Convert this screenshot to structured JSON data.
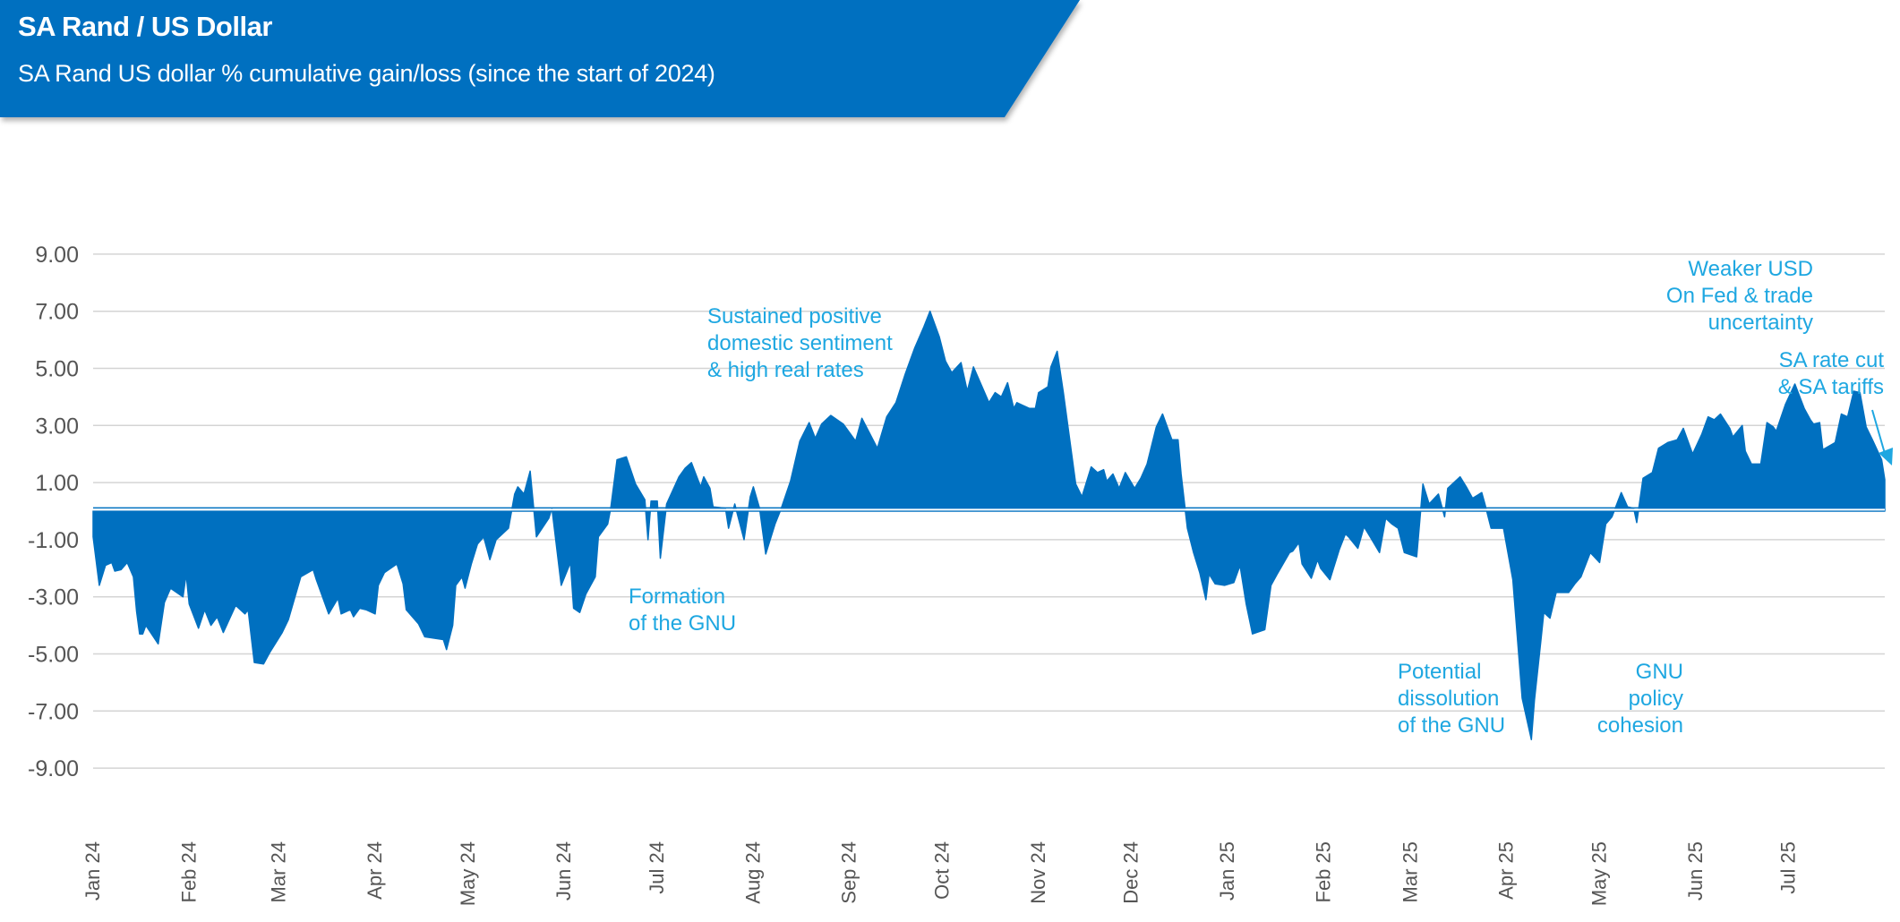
{
  "header": {
    "title": "SA Rand / US Dollar",
    "subtitle": "SA Rand US dollar % cumulative gain/loss (since the start of 2024)",
    "color": "#0070c0"
  },
  "annotations": {
    "sentiment": "Sustained positive\ndomestic sentiment\n& high real rates",
    "formation": "Formation\nof the GNU",
    "dissolution": "Potential\ndissolution\nof the GNU",
    "cohesion": "GNU\npolicy\ncohesion",
    "weaker_usd": "Weaker USD\nOn Fed & trade\nuncertainty",
    "rate_cut": "SA rate cut\n& SA tariffs",
    "color": "#1ea7e1"
  },
  "chart_data": {
    "type": "area",
    "title": "",
    "xlabel": "",
    "ylabel": "",
    "xlim": [
      "2024-01-01",
      "2025-08-01"
    ],
    "ylim": [
      -9,
      9
    ],
    "yticks": [
      9,
      7,
      5,
      3,
      1,
      -1,
      -3,
      -5,
      -7,
      -9
    ],
    "ytick_labels": [
      "9.00",
      "7.00",
      "5.00",
      "3.00",
      "1.00",
      "-1.00",
      "-3.00",
      "-5.00",
      "-7.00",
      "-9.00"
    ],
    "xticks": [
      "2024-01-01",
      "2024-02-01",
      "2024-03-01",
      "2024-04-01",
      "2024-05-01",
      "2024-06-01",
      "2024-07-01",
      "2024-08-01",
      "2024-09-01",
      "2024-10-01",
      "2024-11-01",
      "2024-12-01",
      "2025-01-01",
      "2025-02-01",
      "2025-03-01",
      "2025-04-01",
      "2025-05-01",
      "2025-06-01",
      "2025-07-01"
    ],
    "xtick_labels": [
      "Jan 24",
      "Feb 24",
      "Mar 24",
      "Apr 24",
      "May 24",
      "Jun 24",
      "Jul 24",
      "Aug 24",
      "Sep 24",
      "Oct 24",
      "Nov 24",
      "Dec 24",
      "Jan 25",
      "Feb 25",
      "Mar 25",
      "Apr 25",
      "May 25",
      "Jun 25",
      "Jul 25"
    ],
    "grid": true,
    "fill_color": "#0070c0",
    "series": [
      {
        "x": [
          "2024-01-01",
          "2024-01-03",
          "2024-01-05",
          "2024-01-07",
          "2024-01-08",
          "2024-01-10",
          "2024-01-12",
          "2024-01-14",
          "2024-01-15",
          "2024-01-16",
          "2024-01-17",
          "2024-01-18",
          "2024-01-22",
          "2024-01-24",
          "2024-01-26",
          "2024-01-30",
          "2024-01-31",
          "2024-02-01",
          "2024-02-04",
          "2024-02-06",
          "2024-02-08",
          "2024-02-10",
          "2024-02-12",
          "2024-02-16",
          "2024-02-19",
          "2024-02-20",
          "2024-02-22",
          "2024-02-25",
          "2024-02-27",
          "2024-03-02",
          "2024-03-04",
          "2024-03-08",
          "2024-03-12",
          "2024-03-13",
          "2024-03-17",
          "2024-03-20",
          "2024-03-21",
          "2024-03-24",
          "2024-03-25",
          "2024-03-27",
          "2024-03-29",
          "2024-04-01",
          "2024-04-02",
          "2024-04-04",
          "2024-04-08",
          "2024-04-10",
          "2024-04-11",
          "2024-04-15",
          "2024-04-17",
          "2024-04-23",
          "2024-04-24",
          "2024-04-26",
          "2024-04-27",
          "2024-04-29",
          "2024-04-30",
          "2024-05-02",
          "2024-05-04",
          "2024-05-06",
          "2024-05-08",
          "2024-05-10",
          "2024-05-14",
          "2024-05-16",
          "2024-05-17",
          "2024-05-19",
          "2024-05-21",
          "2024-05-23",
          "2024-05-27",
          "2024-05-28",
          "2024-05-31",
          "2024-06-03",
          "2024-06-04",
          "2024-06-06",
          "2024-06-08",
          "2024-06-11",
          "2024-06-12",
          "2024-06-15",
          "2024-06-16",
          "2024-06-18",
          "2024-06-21",
          "2024-06-24",
          "2024-06-27",
          "2024-06-28",
          "2024-06-29",
          "2024-07-01",
          "2024-07-02",
          "2024-07-04",
          "2024-07-08",
          "2024-07-10",
          "2024-07-12",
          "2024-07-15",
          "2024-07-16",
          "2024-07-18",
          "2024-07-19",
          "2024-07-23",
          "2024-07-24",
          "2024-07-26",
          "2024-07-29",
          "2024-07-31",
          "2024-08-01",
          "2024-08-03",
          "2024-08-05",
          "2024-08-08",
          "2024-08-10",
          "2024-08-13",
          "2024-08-16",
          "2024-08-19",
          "2024-08-21",
          "2024-08-23",
          "2024-08-26",
          "2024-08-30",
          "2024-09-03",
          "2024-09-05",
          "2024-09-10",
          "2024-09-13",
          "2024-09-16",
          "2024-09-19",
          "2024-09-22",
          "2024-09-25",
          "2024-09-27",
          "2024-09-30",
          "2024-10-02",
          "2024-10-04",
          "2024-10-07",
          "2024-10-09",
          "2024-10-11",
          "2024-10-16",
          "2024-10-18",
          "2024-10-20",
          "2024-10-22",
          "2024-10-24",
          "2024-10-25",
          "2024-10-29",
          "2024-10-31",
          "2024-11-01",
          "2024-11-04",
          "2024-11-05",
          "2024-11-07",
          "2024-11-09",
          "2024-11-13",
          "2024-11-15",
          "2024-11-18",
          "2024-11-20",
          "2024-11-22",
          "2024-11-23",
          "2024-11-25",
          "2024-11-27",
          "2024-11-29",
          "2024-12-02",
          "2024-12-04",
          "2024-12-06",
          "2024-12-09",
          "2024-12-11",
          "2024-12-14",
          "2024-12-16",
          "2024-12-17",
          "2024-12-19",
          "2024-12-21",
          "2024-12-23",
          "2024-12-25",
          "2024-12-26",
          "2024-12-28",
          "2024-12-31",
          "2025-01-03",
          "2025-01-05",
          "2025-01-07",
          "2025-01-09",
          "2025-01-13",
          "2025-01-15",
          "2025-01-17",
          "2025-01-21",
          "2025-01-22",
          "2025-01-24",
          "2025-01-25",
          "2025-01-28",
          "2025-01-30",
          "2025-01-31",
          "2025-02-03",
          "2025-02-06",
          "2025-02-08",
          "2025-02-09",
          "2025-02-12",
          "2025-02-14",
          "2025-02-16",
          "2025-02-19",
          "2025-02-21",
          "2025-02-23",
          "2025-02-25",
          "2025-02-27",
          "2025-03-03",
          "2025-03-05",
          "2025-03-07",
          "2025-03-10",
          "2025-03-12",
          "2025-03-13",
          "2025-03-17",
          "2025-03-19",
          "2025-03-21",
          "2025-03-24",
          "2025-03-25",
          "2025-03-27",
          "2025-03-31",
          "2025-04-03",
          "2025-04-06",
          "2025-04-09",
          "2025-04-10",
          "2025-04-12",
          "2025-04-13",
          "2025-04-15",
          "2025-04-17",
          "2025-04-21",
          "2025-04-23",
          "2025-04-25",
          "2025-04-28",
          "2025-05-01",
          "2025-05-03",
          "2025-05-05",
          "2025-05-08",
          "2025-05-10",
          "2025-05-12",
          "2025-05-13",
          "2025-05-15",
          "2025-05-18",
          "2025-05-20",
          "2025-05-23",
          "2025-05-26",
          "2025-05-28",
          "2025-05-31",
          "2025-06-03",
          "2025-06-05",
          "2025-06-07",
          "2025-06-09",
          "2025-06-12",
          "2025-06-13",
          "2025-06-16",
          "2025-06-17",
          "2025-06-19",
          "2025-06-22",
          "2025-06-24",
          "2025-06-26",
          "2025-06-27",
          "2025-06-30",
          "2025-07-03",
          "2025-07-06",
          "2025-07-08",
          "2025-07-09",
          "2025-07-11",
          "2025-07-12",
          "2025-07-16",
          "2025-07-18",
          "2025-07-20",
          "2025-07-22",
          "2025-07-24",
          "2025-07-26",
          "2025-07-28",
          "2025-07-31",
          "2025-08-01"
        ],
        "y": [
          -0.9,
          -2.6,
          -1.9,
          -1.8,
          -2.1,
          -2.05,
          -1.8,
          -2.3,
          -3.5,
          -4.3,
          -4.3,
          -4.0,
          -4.65,
          -3.2,
          -2.7,
          -3.0,
          -2.2,
          -3.25,
          -4.1,
          -3.45,
          -4.0,
          -3.7,
          -4.25,
          -3.3,
          -3.6,
          -3.45,
          -5.3,
          -5.35,
          -4.95,
          -4.25,
          -3.8,
          -2.3,
          -2.05,
          -2.4,
          -3.6,
          -3.05,
          -3.6,
          -3.45,
          -3.7,
          -3.4,
          -3.45,
          -3.6,
          -2.6,
          -2.15,
          -1.85,
          -2.55,
          -3.45,
          -3.95,
          -4.4,
          -4.5,
          -4.85,
          -4.0,
          -2.6,
          -2.3,
          -2.7,
          -1.85,
          -1.15,
          -0.9,
          -1.7,
          -1.0,
          -0.6,
          0.6,
          0.85,
          0.6,
          1.4,
          -0.9,
          -0.25,
          0.1,
          -2.6,
          -1.8,
          -3.4,
          -3.55,
          -2.9,
          -2.3,
          -0.9,
          -0.45,
          0.1,
          1.8,
          1.9,
          0.95,
          0.4,
          -1.0,
          0.35,
          0.35,
          -1.65,
          0.25,
          1.2,
          1.5,
          1.7,
          0.85,
          1.2,
          0.8,
          0.15,
          0.1,
          -0.6,
          0.25,
          -1.0,
          0.5,
          0.85,
          0.1,
          -1.5,
          -0.45,
          0.1,
          1.05,
          2.45,
          3.1,
          2.55,
          3.05,
          3.35,
          3.05,
          2.45,
          3.25,
          2.2,
          3.3,
          3.8,
          4.8,
          5.7,
          6.45,
          7.0,
          6.1,
          5.25,
          4.85,
          5.2,
          4.2,
          5.05,
          3.8,
          4.15,
          4.0,
          4.5,
          3.6,
          3.8,
          3.6,
          3.6,
          4.15,
          4.35,
          5.05,
          5.6,
          4.15,
          0.95,
          0.5,
          1.55,
          1.35,
          1.45,
          1.05,
          1.3,
          0.8,
          1.35,
          0.8,
          1.15,
          1.65,
          2.95,
          3.4,
          2.5,
          2.5,
          1.3,
          -0.6,
          -1.45,
          -2.15,
          -3.1,
          -2.2,
          -2.55,
          -2.6,
          -2.5,
          -1.9,
          -3.25,
          -4.3,
          -4.15,
          -2.6,
          -2.2,
          -1.45,
          -1.4,
          -1.1,
          -1.85,
          -2.35,
          -1.7,
          -2.0,
          -2.4,
          -1.35,
          -0.8,
          -0.9,
          -1.3,
          -0.55,
          -0.9,
          -1.45,
          -0.25,
          -0.45,
          -0.6,
          -1.45,
          -1.6,
          0.95,
          0.25,
          0.6,
          -0.2,
          0.8,
          1.2,
          0.85,
          0.45,
          0.65,
          0.25,
          -0.6,
          -0.6,
          -2.4,
          -6.55,
          -8.0,
          -6.6,
          -4.6,
          -3.55,
          -3.75,
          -2.85,
          -2.85,
          -2.55,
          -2.3,
          -1.45,
          -1.8,
          -0.45,
          -0.2,
          0.65,
          0.15,
          0.1,
          -0.4,
          1.15,
          1.35,
          2.2,
          2.4,
          2.5,
          2.9,
          2.0,
          2.7,
          3.3,
          3.2,
          3.4,
          2.9,
          2.6,
          3.0,
          2.1,
          1.65,
          1.65,
          3.1,
          2.95,
          2.8,
          3.75,
          4.45,
          3.6,
          3.2,
          3.05,
          3.1,
          2.15,
          2.4,
          3.4,
          3.3,
          4.2,
          4.15,
          2.95,
          2.5,
          1.8,
          1.1
        ]
      }
    ]
  }
}
